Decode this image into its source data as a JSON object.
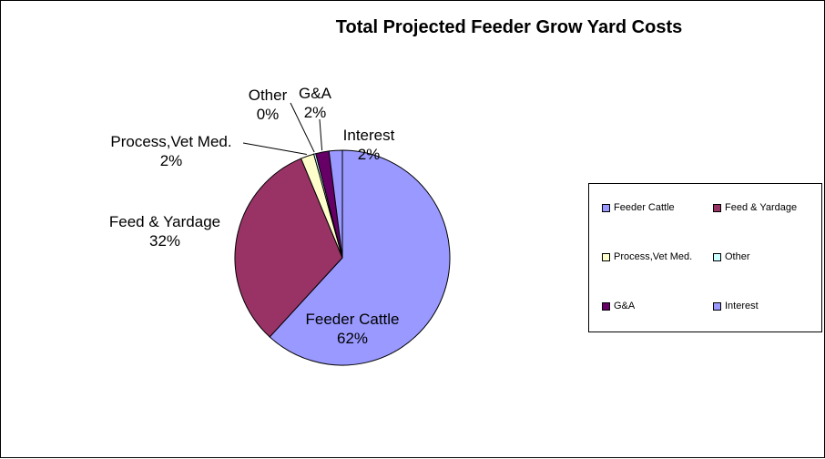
{
  "chart_data": {
    "type": "pie",
    "title": "Total Projected Feeder Grow Yard Costs",
    "slices": [
      {
        "name": "Feeder Cattle",
        "value": 62,
        "pct_label": "62%",
        "color": "#9999FF"
      },
      {
        "name": "Feed & Yardage",
        "value": 32,
        "pct_label": "32%",
        "color": "#993366"
      },
      {
        "name": "Process,Vet Med.",
        "value": 2,
        "pct_label": "2%",
        "color": "#FFFFCC"
      },
      {
        "name": "Other",
        "value": 0.3,
        "pct_label": "0%",
        "color": "#CCFFFF"
      },
      {
        "name": "G&A",
        "value": 2,
        "pct_label": "2%",
        "color": "#660066"
      },
      {
        "name": "Interest",
        "value": 2,
        "pct_label": "2%",
        "color": "#9999FF"
      }
    ],
    "legend_position": "right"
  },
  "colors": {
    "background": "#FFFFFF",
    "border": "#000000",
    "leader_line": "#000000"
  }
}
